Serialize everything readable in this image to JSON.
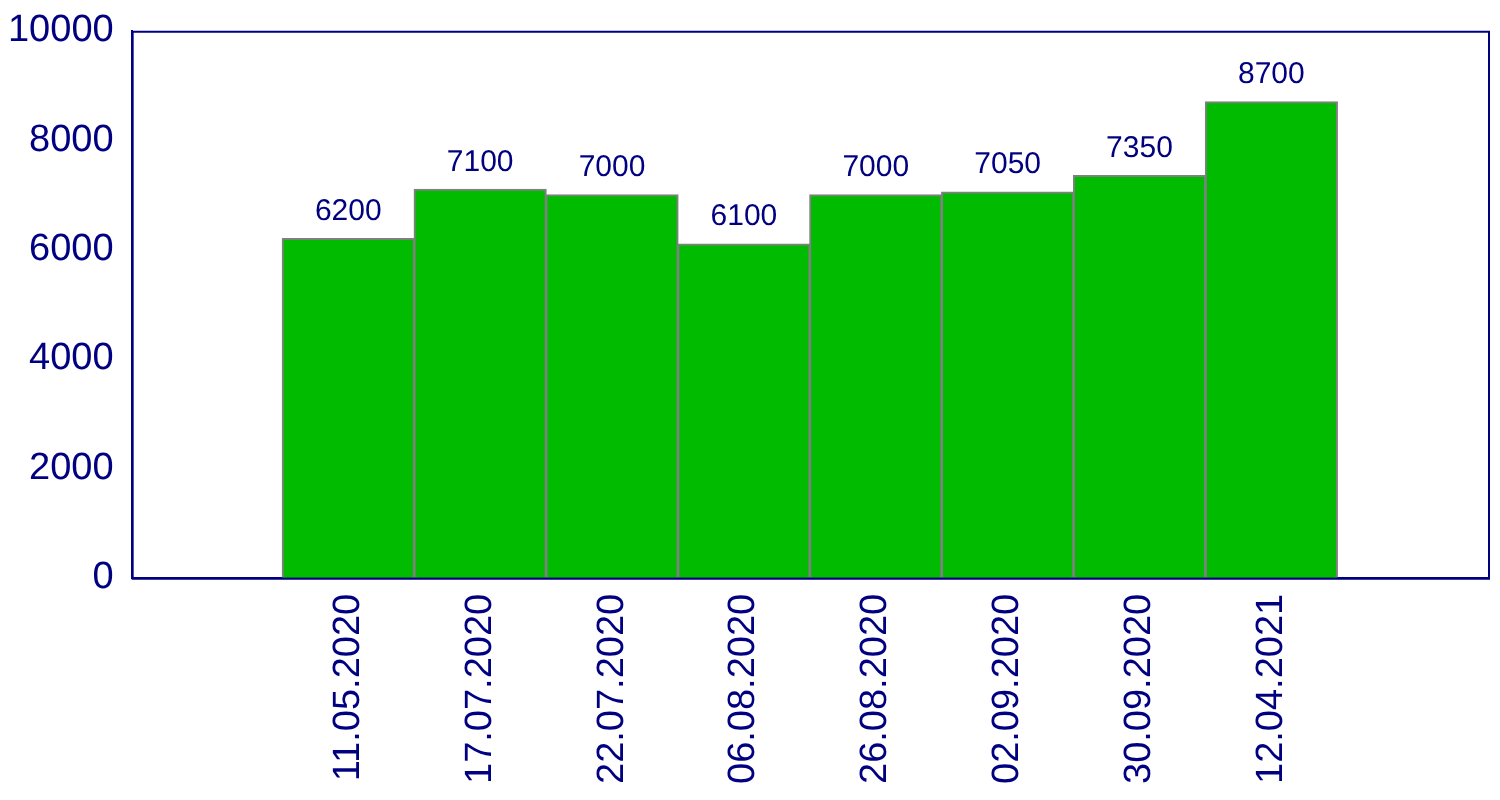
{
  "chart_data": {
    "type": "bar",
    "categories": [
      "11.05.2020",
      "17.07.2020",
      "22.07.2020",
      "06.08.2020",
      "26.08.2020",
      "02.09.2020",
      "30.09.2020",
      "12.04.2021"
    ],
    "values": [
      6200,
      7100,
      7000,
      6100,
      7000,
      7050,
      7350,
      8700
    ],
    "color": "#00bb00",
    "ylim": [
      0,
      10000
    ],
    "yticks": [
      0,
      2000,
      4000,
      6000,
      8000,
      10000
    ],
    "grid": false,
    "legend": false,
    "data_labels": true
  }
}
